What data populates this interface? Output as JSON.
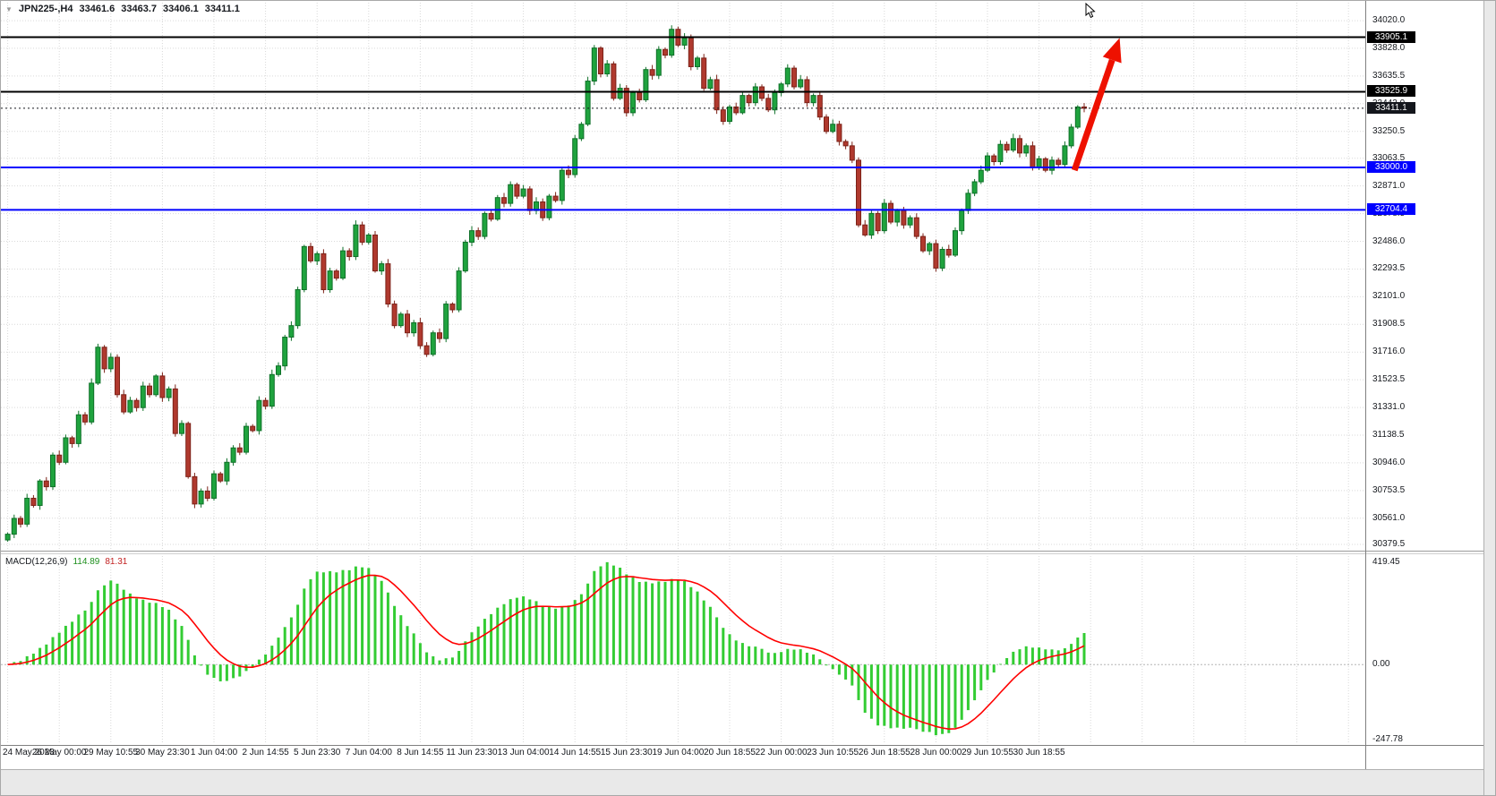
{
  "header": {
    "dropdown_icon": "▼",
    "symbol": "JPN225-,H4",
    "open": "33461.6",
    "high": "33463.7",
    "low": "33406.1",
    "close": "33411.1"
  },
  "chart_data": [
    {
      "type": "candlestick",
      "symbol": "JPN225-",
      "timeframe": "H4",
      "bg_color": "#ffffff",
      "grid": true,
      "grid_color": "#d9d9d9",
      "bull_color": "#1fa33e",
      "bull_border": "#0e7028",
      "bear_color": "#b0392e",
      "bear_border": "#7c2218",
      "first_open": 30410,
      "closes": [
        30450,
        30560,
        30520,
        30700,
        30650,
        30820,
        30780,
        31000,
        30950,
        31120,
        31080,
        31280,
        31230,
        31500,
        31750,
        31600,
        31680,
        31420,
        31300,
        31380,
        31330,
        31480,
        31420,
        31550,
        31400,
        31460,
        31150,
        31220,
        30850,
        30660,
        30750,
        30700,
        30870,
        30820,
        30950,
        31050,
        31020,
        31200,
        31170,
        31380,
        31340,
        31560,
        31620,
        31820,
        31900,
        32150,
        32450,
        32350,
        32400,
        32150,
        32280,
        32230,
        32420,
        32380,
        32600,
        32480,
        32530,
        32280,
        32330,
        32050,
        31900,
        31980,
        31850,
        31920,
        31760,
        31700,
        31850,
        31810,
        32050,
        32010,
        32280,
        32480,
        32560,
        32520,
        32680,
        32640,
        32790,
        32750,
        32880,
        32800,
        32850,
        32700,
        32760,
        32650,
        32800,
        32770,
        32980,
        32950,
        33200,
        33300,
        33600,
        33830,
        33650,
        33720,
        33480,
        33550,
        33380,
        33520,
        33470,
        33680,
        33640,
        33820,
        33780,
        33960,
        33850,
        33900,
        33700,
        33760,
        33550,
        33610,
        33400,
        33320,
        33420,
        33380,
        33500,
        33450,
        33560,
        33480,
        33400,
        33520,
        33580,
        33690,
        33560,
        33610,
        33450,
        33500,
        33350,
        33250,
        33300,
        33180,
        33150,
        33050,
        32600,
        32530,
        32680,
        32560,
        32750,
        32620,
        32700,
        32600,
        32650,
        32520,
        32420,
        32470,
        32300,
        32430,
        32390,
        32560,
        32700,
        32820,
        32900,
        32980,
        33080,
        33040,
        33160,
        33120,
        33200,
        33100,
        33150,
        33000,
        33060,
        32980,
        33050,
        33020,
        33150,
        33280,
        33420,
        33411
      ],
      "price_axis": {
        "min": 30348,
        "max": 34145,
        "ticks": [
          "34020.0",
          "33828.0",
          "33635.5",
          "33443.0",
          "33250.5",
          "33063.5",
          "32871.0",
          "32678.5",
          "32486.0",
          "32293.5",
          "32101.0",
          "31908.5",
          "31716.0",
          "31523.5",
          "31331.0",
          "31138.5",
          "30946.0",
          "30753.5",
          "30561.0",
          "30379.5"
        ]
      },
      "time_axis": {
        "bars_per_label": 8,
        "labels": [
          "24 May 2023",
          "26 May 00:00",
          "29 May 10:55",
          "30 May 23:30",
          "1 Jun 04:00",
          "2 Jun 14:55",
          "5 Jun 23:30",
          "7 Jun 04:00",
          "8 Jun 14:55",
          "11 Jun 23:30",
          "13 Jun 04:00",
          "14 Jun 14:55",
          "15 Jun 23:30",
          "19 Jun 04:00",
          "20 Jun 18:55",
          "22 Jun 00:00",
          "23 Jun 10:55",
          "26 Jun 18:55",
          "28 Jun 00:00",
          "29 Jun 10:55",
          "30 Jun 18:55"
        ]
      },
      "levels": [
        {
          "label": "33905.1",
          "price": 33905.1,
          "color": "#000000",
          "style": "solid",
          "width": 2
        },
        {
          "label": "33525.9",
          "price": 33525.9,
          "color": "#000000",
          "style": "solid",
          "width": 2
        },
        {
          "label": "33411.1",
          "price": 33411.1,
          "color": "#14161c",
          "style": "dotted",
          "width": 1
        },
        {
          "label": "33000.0",
          "price": 33000.0,
          "color": "#0000ff",
          "style": "solid",
          "width": 2
        },
        {
          "label": "32704.4",
          "price": 32704.4,
          "color": "#0000ff",
          "style": "solid",
          "width": 2
        }
      ],
      "annotations": [
        {
          "type": "arrow",
          "color": "#ee1100",
          "from_bar": 165.5,
          "from_price": 32980,
          "to_bar": 172.5,
          "to_price": 33900
        }
      ]
    },
    {
      "type": "bar",
      "title": "MACD(12,26,9)",
      "current_values": [
        "114.89",
        "81.31"
      ],
      "histogram_color": "#33cc33",
      "signal_color": "#ff0000",
      "axis_labels": {
        "max": "419.45",
        "zero": "0.00",
        "min": "-247.78"
      }
    }
  ]
}
